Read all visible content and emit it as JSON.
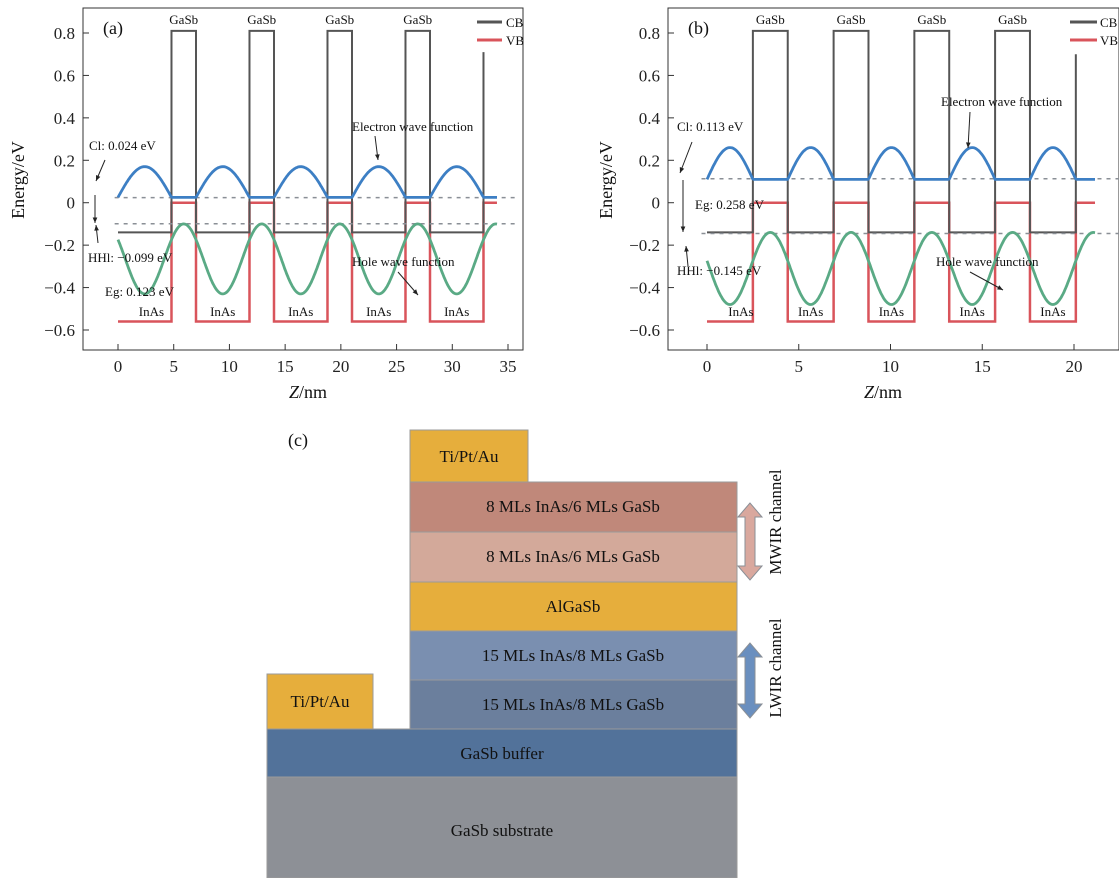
{
  "chart_data": [
    {
      "type": "line",
      "panel": "(a)",
      "xlabel_italic": "Z",
      "xlabel_unit": "/nm",
      "ylabel": "Energy/eV",
      "xlim": [
        -3,
        37
      ],
      "ylim": [
        -0.65,
        0.9
      ],
      "xticks": [
        0,
        5,
        10,
        15,
        20,
        25,
        30,
        35
      ],
      "yticks": [
        0.8,
        0.6,
        0.4,
        0.2,
        0,
        -0.2,
        -0.4,
        -0.6
      ],
      "ytick_labels": [
        "0.8",
        "0.6",
        "0.4",
        "0.2",
        "0",
        "−0.2",
        "−0.4",
        "−0.6"
      ],
      "legend": [
        {
          "name": "CB",
          "color": "#555555"
        },
        {
          "name": "VB",
          "color": "#d9545b"
        }
      ],
      "period": 7.0,
      "inas_width": 4.8,
      "n_periods": 5,
      "cb": {
        "inas": -0.14,
        "gasb": 0.81,
        "last_spike_top": 0.71
      },
      "vb": {
        "inas": -0.56,
        "gasb": 0.0
      },
      "electron_level": 0.024,
      "hole_level": -0.099,
      "electron_wf": {
        "min": 0.025,
        "max": 0.17
      },
      "hole_wf": {
        "min": -0.43,
        "max": -0.1
      },
      "layer_labels_top": [
        "GaSb",
        "GaSb",
        "GaSb",
        "GaSb"
      ],
      "layer_labels_bottom": [
        "InAs",
        "InAs",
        "InAs",
        "InAs",
        "InAs"
      ],
      "annotations": {
        "cl": "Cl: 0.024 eV",
        "eg": "Eg: 0.123 eV",
        "hhl": "HHl: −0.099 eV",
        "electron": "Electron wave function",
        "hole": "Hole wave function"
      },
      "colors": {
        "electron_wf": "#3d7fc4",
        "hole_wf": "#5aaa85",
        "levels": "#8a8f96"
      }
    },
    {
      "type": "line",
      "panel": "(b)",
      "xlabel_italic": "Z",
      "xlabel_unit": "/nm",
      "ylabel": "Energy/eV",
      "xlim": [
        -2,
        22
      ],
      "ylim": [
        -0.65,
        0.9
      ],
      "xticks": [
        0,
        5,
        10,
        15,
        20
      ],
      "yticks": [
        0.8,
        0.6,
        0.4,
        0.2,
        0,
        -0.2,
        -0.4,
        -0.6
      ],
      "ytick_labels": [
        "0.8",
        "0.6",
        "0.4",
        "0.2",
        "0",
        "−0.2",
        "−0.4",
        "−0.6"
      ],
      "legend": [
        {
          "name": "CB",
          "color": "#555555"
        },
        {
          "name": "VB",
          "color": "#d9545b"
        }
      ],
      "period": 4.4,
      "inas_width": 2.5,
      "n_periods": 5,
      "cb": {
        "inas": -0.14,
        "gasb": 0.81,
        "last_spike_top": 0.7
      },
      "vb": {
        "inas": -0.56,
        "gasb": 0.0
      },
      "electron_level": 0.113,
      "hole_level": -0.145,
      "electron_wf": {
        "min": 0.11,
        "max": 0.26
      },
      "hole_wf": {
        "min": -0.48,
        "max": -0.14
      },
      "layer_labels_top": [
        "GaSb",
        "GaSb",
        "GaSb",
        "GaSb"
      ],
      "layer_labels_bottom": [
        "InAs",
        "InAs",
        "InAs",
        "InAs",
        "InAs"
      ],
      "annotations": {
        "cl": "Cl: 0.113 eV",
        "eg": "Eg: 0.258 eV",
        "hhl": "HHl: −0.145 eV",
        "electron": "Electron wave function",
        "hole": "Hole wave function"
      },
      "colors": {
        "electron_wf": "#3d7fc4",
        "hole_wf": "#5aaa85",
        "levels": "#8a8f96"
      }
    }
  ],
  "device": {
    "panel": "(c)",
    "contact_top": "Ti/Pt/Au",
    "contact_bottom": "Ti/Pt/Au",
    "layers": [
      {
        "label": "8 MLs InAs/6 MLs GaSb",
        "color": "#c0887a"
      },
      {
        "label": "8 MLs InAs/6 MLs GaSb",
        "color": "#d3a99a"
      },
      {
        "label": "AlGaSb",
        "color": "#e6ae3c"
      },
      {
        "label": "15 MLs InAs/8 MLs GaSb",
        "color": "#7a8fb0"
      },
      {
        "label": "15 MLs InAs/8 MLs GaSb",
        "color": "#6b7f9d"
      },
      {
        "label": "GaSb buffer",
        "color": "#52729a"
      },
      {
        "label": "GaSb substrate",
        "color": "#8d9096"
      }
    ],
    "contact_color": "#e6ae3c",
    "channels": [
      {
        "label": "MWIR channel",
        "arrow_color": "#d9a89e"
      },
      {
        "label": "LWIR channel",
        "arrow_color": "#6a8fbf"
      }
    ]
  }
}
